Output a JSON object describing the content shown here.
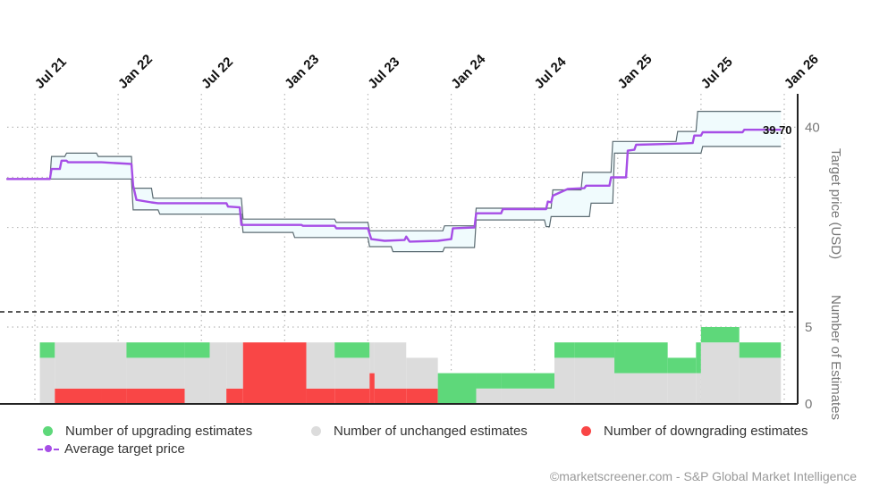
{
  "chart_data": {
    "type": "line",
    "x_tick_labels": [
      "Jul 21",
      "Jan 22",
      "Jul 22",
      "Jan 23",
      "Jul 23",
      "Jan 24",
      "Jul 24",
      "Jan 25",
      "Jul 25",
      "Jan 26"
    ],
    "x_tick_dates": [
      2021.5,
      2022.0,
      2022.5,
      2023.0,
      2023.5,
      2024.0,
      2024.5,
      2025.0,
      2025.5,
      2026.0
    ],
    "x_range": [
      2021.33,
      2026.0
    ],
    "price_axis": {
      "label": "Target price (USD)",
      "tick_value": 40,
      "ylim": [
        18,
        44
      ],
      "extra_gridlines": [
        34,
        28
      ]
    },
    "estimates_axis": {
      "label": "Number of Estimates",
      "ticks": [
        0,
        5
      ],
      "ylim": [
        0,
        5
      ]
    },
    "last_value_label": "39.70",
    "average_target_price": [
      [
        2021.33,
        33.8
      ],
      [
        2021.59,
        33.8
      ],
      [
        2021.6,
        35.0
      ],
      [
        2021.65,
        35.0
      ],
      [
        2021.66,
        36.0
      ],
      [
        2021.69,
        36.0
      ],
      [
        2021.7,
        35.8
      ],
      [
        2021.9,
        35.8
      ],
      [
        2022.08,
        35.6
      ],
      [
        2022.09,
        33.0
      ],
      [
        2022.11,
        31.3
      ],
      [
        2022.2,
        31.0
      ],
      [
        2022.24,
        30.9
      ],
      [
        2022.65,
        30.9
      ],
      [
        2022.66,
        30.5
      ],
      [
        2022.73,
        30.4
      ],
      [
        2022.74,
        28.3
      ],
      [
        2023.1,
        28.3
      ],
      [
        2023.11,
        28.2
      ],
      [
        2023.3,
        28.2
      ],
      [
        2023.31,
        27.9
      ],
      [
        2023.5,
        27.9
      ],
      [
        2023.52,
        26.6
      ],
      [
        2023.6,
        26.4
      ],
      [
        2023.72,
        26.5
      ],
      [
        2023.73,
        26.9
      ],
      [
        2023.75,
        26.3
      ],
      [
        2023.92,
        26.4
      ],
      [
        2024.0,
        26.6
      ],
      [
        2024.01,
        27.9
      ],
      [
        2024.14,
        28.0
      ],
      [
        2024.15,
        29.7
      ],
      [
        2024.3,
        29.7
      ],
      [
        2024.31,
        30.2
      ],
      [
        2024.57,
        30.2
      ],
      [
        2024.58,
        31.1
      ],
      [
        2024.6,
        31.0
      ],
      [
        2024.61,
        31.8
      ],
      [
        2024.7,
        32.6
      ],
      [
        2024.8,
        32.7
      ],
      [
        2024.81,
        33.0
      ],
      [
        2024.95,
        33.0
      ],
      [
        2024.96,
        34.0
      ],
      [
        2025.05,
        34.0
      ],
      [
        2025.06,
        37.2
      ],
      [
        2025.1,
        37.3
      ],
      [
        2025.11,
        37.9
      ],
      [
        2025.3,
        38.0
      ],
      [
        2025.45,
        38.1
      ],
      [
        2025.46,
        39.0
      ],
      [
        2025.5,
        39.0
      ],
      [
        2025.51,
        39.4
      ],
      [
        2025.75,
        39.4
      ],
      [
        2025.76,
        39.7
      ],
      [
        2025.98,
        39.7
      ]
    ],
    "target_high": [
      [
        2021.33,
        33.8
      ],
      [
        2021.59,
        33.8
      ],
      [
        2021.6,
        36.5
      ],
      [
        2021.68,
        36.5
      ],
      [
        2021.69,
        36.9
      ],
      [
        2021.87,
        36.9
      ],
      [
        2021.88,
        36.5
      ],
      [
        2022.08,
        36.5
      ],
      [
        2022.09,
        32.7
      ],
      [
        2022.2,
        32.7
      ],
      [
        2022.21,
        31.5
      ],
      [
        2022.74,
        31.5
      ],
      [
        2022.75,
        29.0
      ],
      [
        2023.3,
        29.0
      ],
      [
        2023.31,
        28.6
      ],
      [
        2023.5,
        28.6
      ],
      [
        2023.51,
        27.6
      ],
      [
        2023.95,
        27.6
      ],
      [
        2023.96,
        28.2
      ],
      [
        2024.14,
        28.2
      ],
      [
        2024.15,
        30.3
      ],
      [
        2024.6,
        30.3
      ],
      [
        2024.61,
        32.5
      ],
      [
        2024.78,
        32.5
      ],
      [
        2024.79,
        34.6
      ],
      [
        2024.96,
        34.6
      ],
      [
        2024.97,
        38.3
      ],
      [
        2025.35,
        38.3
      ],
      [
        2025.36,
        39.5
      ],
      [
        2025.47,
        39.5
      ],
      [
        2025.48,
        41.9
      ],
      [
        2025.98,
        41.9
      ]
    ],
    "target_low": [
      [
        2021.33,
        33.8
      ],
      [
        2022.08,
        33.8
      ],
      [
        2022.09,
        30.1
      ],
      [
        2022.24,
        30.1
      ],
      [
        2022.25,
        29.6
      ],
      [
        2022.74,
        29.6
      ],
      [
        2022.75,
        27.4
      ],
      [
        2023.05,
        27.4
      ],
      [
        2023.06,
        26.8
      ],
      [
        2023.5,
        26.8
      ],
      [
        2023.51,
        25.7
      ],
      [
        2023.64,
        25.7
      ],
      [
        2023.65,
        25.1
      ],
      [
        2023.95,
        25.1
      ],
      [
        2023.96,
        25.6
      ],
      [
        2024.14,
        25.6
      ],
      [
        2024.15,
        28.9
      ],
      [
        2024.56,
        28.9
      ],
      [
        2024.57,
        28.1
      ],
      [
        2024.59,
        28.1
      ],
      [
        2024.6,
        29.3
      ],
      [
        2024.83,
        29.3
      ],
      [
        2024.84,
        30.9
      ],
      [
        2024.97,
        30.9
      ],
      [
        2024.98,
        36.9
      ],
      [
        2025.5,
        36.9
      ],
      [
        2025.51,
        37.7
      ],
      [
        2025.98,
        37.7
      ]
    ],
    "estimate_counts": [
      {
        "start": 2021.53,
        "end": 2021.62,
        "up": 1,
        "unchanged": 3,
        "down": 0
      },
      {
        "start": 2021.62,
        "end": 2021.9,
        "up": 0,
        "unchanged": 3,
        "down": 1
      },
      {
        "start": 2021.9,
        "end": 2022.05,
        "up": 0,
        "unchanged": 3,
        "down": 1
      },
      {
        "start": 2022.05,
        "end": 2022.4,
        "up": 1,
        "unchanged": 2,
        "down": 1
      },
      {
        "start": 2022.4,
        "end": 2022.55,
        "up": 1,
        "unchanged": 3,
        "down": 0
      },
      {
        "start": 2022.55,
        "end": 2022.65,
        "up": 0,
        "unchanged": 4,
        "down": 0
      },
      {
        "start": 2022.65,
        "end": 2022.75,
        "up": 0,
        "unchanged": 3,
        "down": 1
      },
      {
        "start": 2022.75,
        "end": 2023.13,
        "up": 0,
        "unchanged": 0,
        "down": 4
      },
      {
        "start": 2023.13,
        "end": 2023.3,
        "up": 0,
        "unchanged": 3,
        "down": 1
      },
      {
        "start": 2023.3,
        "end": 2023.51,
        "up": 1,
        "unchanged": 2,
        "down": 1
      },
      {
        "start": 2023.51,
        "end": 2023.54,
        "up": 0,
        "unchanged": 2,
        "down": 2
      },
      {
        "start": 2023.54,
        "end": 2023.73,
        "up": 0,
        "unchanged": 3,
        "down": 1
      },
      {
        "start": 2023.73,
        "end": 2023.92,
        "up": 0,
        "unchanged": 2,
        "down": 1
      },
      {
        "start": 2023.92,
        "end": 2024.15,
        "up": 2,
        "unchanged": 0,
        "down": 0
      },
      {
        "start": 2024.15,
        "end": 2024.3,
        "up": 1,
        "unchanged": 1,
        "down": 0
      },
      {
        "start": 2024.3,
        "end": 2024.62,
        "up": 1,
        "unchanged": 1,
        "down": 0
      },
      {
        "start": 2024.62,
        "end": 2024.74,
        "up": 1,
        "unchanged": 3,
        "down": 0
      },
      {
        "start": 2024.74,
        "end": 2024.98,
        "up": 1,
        "unchanged": 3,
        "down": 0
      },
      {
        "start": 2024.98,
        "end": 2025.3,
        "up": 2,
        "unchanged": 2,
        "down": 0
      },
      {
        "start": 2025.3,
        "end": 2025.47,
        "up": 1,
        "unchanged": 2,
        "down": 0
      },
      {
        "start": 2025.47,
        "end": 2025.5,
        "up": 2,
        "unchanged": 2,
        "down": 0
      },
      {
        "start": 2025.5,
        "end": 2025.73,
        "up": 1,
        "unchanged": 4,
        "down": 0
      },
      {
        "start": 2025.73,
        "end": 2025.98,
        "up": 1,
        "unchanged": 3,
        "down": 0
      }
    ],
    "legend": [
      {
        "key": "up",
        "label": "Number of upgrading estimates",
        "color": "#5ed87a"
      },
      {
        "key": "unchanged",
        "label": "Number of unchanged estimates",
        "color": "#dcdcdc"
      },
      {
        "key": "down",
        "label": "Number of downgrading estimates",
        "color": "#f94646"
      },
      {
        "key": "avg",
        "label": "Average target price",
        "color": "#a64ee6"
      }
    ],
    "colors": {
      "average_line": "#a64ee6",
      "range_fill": "#f0fbfd",
      "range_stroke": "#5b6b72",
      "grid": "#b9b9b9",
      "axis": "#222222"
    }
  },
  "footer": "©marketscreener.com - S&P Global Market Intelligence"
}
